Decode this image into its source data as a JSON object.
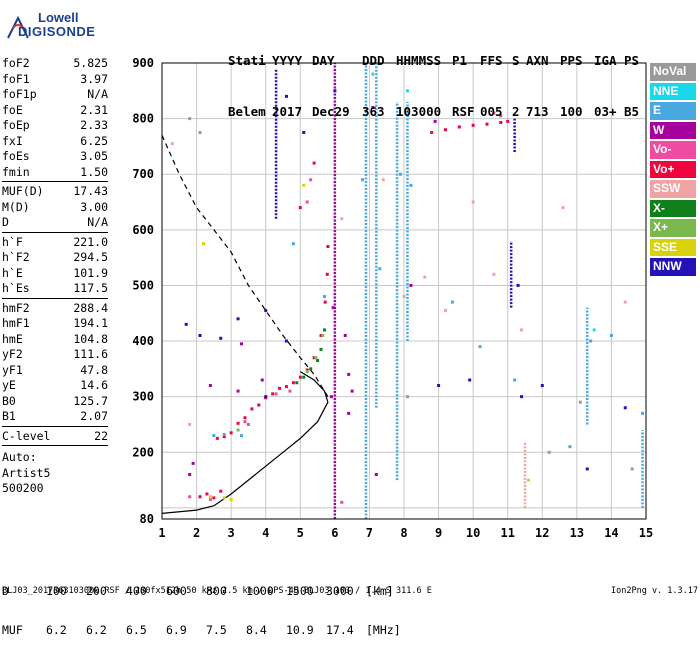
{
  "logo": {
    "line1": "Lowell",
    "line2": "DIGISONDE"
  },
  "header": {
    "labels": [
      "Stati",
      "YYYY",
      "DAY",
      "DDD",
      "HHMMSS",
      "P1",
      "FFS",
      "S",
      "AXN",
      "PPS",
      "IGA",
      "PS"
    ],
    "values": [
      "Belem",
      "2017",
      "Dec29",
      "363",
      "103000",
      "RSF",
      "005",
      "2",
      "713",
      "100",
      "03+",
      "B5"
    ]
  },
  "params": {
    "group1": [
      {
        "name": "foF2",
        "value": "5.825"
      },
      {
        "name": "foF1",
        "value": "3.97"
      },
      {
        "name": "foF1p",
        "value": "N/A"
      },
      {
        "name": "foE",
        "value": "2.31"
      },
      {
        "name": "foEp",
        "value": "2.33"
      },
      {
        "name": "fxI",
        "value": "6.25"
      },
      {
        "name": "foEs",
        "value": "3.05"
      },
      {
        "name": "fmin",
        "value": "1.50"
      }
    ],
    "group2": [
      {
        "name": "MUF(D)",
        "value": "17.43"
      },
      {
        "name": "M(D)",
        "value": "3.00"
      },
      {
        "name": "D",
        "value": "N/A"
      }
    ],
    "group3": [
      {
        "name": "h`F",
        "value": "221.0"
      },
      {
        "name": "h`F2",
        "value": "294.5"
      },
      {
        "name": "h`E",
        "value": "101.9"
      },
      {
        "name": "h`Es",
        "value": "117.5"
      }
    ],
    "group4": [
      {
        "name": "hmF2",
        "value": "288.4"
      },
      {
        "name": "hmF1",
        "value": "194.1"
      },
      {
        "name": "hmE",
        "value": "104.8"
      },
      {
        "name": "yF2",
        "value": "111.6"
      },
      {
        "name": "yF1",
        "value": "47.8"
      },
      {
        "name": "yE",
        "value": "14.6"
      },
      {
        "name": "B0",
        "value": "125.7"
      },
      {
        "name": "B1",
        "value": "2.07"
      }
    ],
    "group5": [
      {
        "name": "C-level",
        "value": "22"
      }
    ],
    "auto": [
      "Auto:",
      "Artist5",
      "500200"
    ]
  },
  "legend": [
    {
      "label": "NoVal",
      "color": "#9a9a9a"
    },
    {
      "label": "NNE",
      "color": "#19d9e6"
    },
    {
      "label": "E",
      "color": "#49a8e0"
    },
    {
      "label": "W",
      "color": "#a6009e"
    },
    {
      "label": "Vo-",
      "color": "#ef4ba3"
    },
    {
      "label": "Vo+",
      "color": "#f0043c"
    },
    {
      "label": "SSW",
      "color": "#f0a3a3"
    },
    {
      "label": "X-",
      "color": "#12801a"
    },
    {
      "label": "X+",
      "color": "#79b84c"
    },
    {
      "label": "SSE",
      "color": "#d8d20e"
    },
    {
      "label": "NNW",
      "color": "#2312b8"
    }
  ],
  "muf_table": {
    "d_label": "D",
    "d_values": [
      "100",
      "200",
      "400",
      "600",
      "800",
      "1000",
      "1500",
      "3000"
    ],
    "d_unit": "[km]",
    "muf_label": "MUF",
    "muf_values": [
      "6.2",
      "6.2",
      "6.5",
      "6.9",
      "7.5",
      "8.4",
      "10.9",
      "17.4"
    ],
    "muf_unit": "[MHz]"
  },
  "footer": {
    "left": "BLJ03_2017363103000.RSF / 280fx512h 50 kHz 2.5 km / DPS-4D BLJ03 103 / 1.4 S 311.6 E",
    "right": "Ion2Png v. 1.3.17"
  },
  "chart_data": {
    "type": "scatter",
    "x_ticks": [
      1,
      2,
      3,
      4,
      5,
      6,
      7,
      8,
      9,
      10,
      11,
      12,
      13,
      14,
      15
    ],
    "y_ticks": [
      80,
      100,
      200,
      300,
      400,
      500,
      600,
      700,
      800,
      900
    ],
    "xlim": [
      1,
      15
    ],
    "ylim": [
      80,
      900
    ],
    "grid": true,
    "legend_position": "right",
    "series": [
      {
        "color": "#f0043c",
        "points": [
          [
            2.6,
            225
          ],
          [
            2.8,
            228
          ],
          [
            3.0,
            235
          ],
          [
            3.2,
            252
          ],
          [
            3.4,
            262
          ],
          [
            3.6,
            278
          ],
          [
            3.8,
            285
          ],
          [
            4.0,
            298
          ],
          [
            4.2,
            305
          ],
          [
            4.4,
            315
          ],
          [
            4.6,
            318
          ],
          [
            4.8,
            325
          ],
          [
            5.0,
            335
          ],
          [
            5.2,
            348
          ],
          [
            5.4,
            370
          ],
          [
            5.6,
            410
          ],
          [
            5.72,
            470
          ],
          [
            5.78,
            520
          ],
          [
            5.8,
            570
          ],
          [
            2.1,
            120
          ],
          [
            2.3,
            125
          ],
          [
            2.5,
            118
          ],
          [
            2.7,
            130
          ],
          [
            8.8,
            775
          ],
          [
            9.2,
            780
          ],
          [
            9.6,
            785
          ],
          [
            10.0,
            788
          ],
          [
            10.4,
            790
          ],
          [
            10.8,
            793
          ],
          [
            11.0,
            795
          ],
          [
            5.0,
            640
          ],
          [
            5.4,
            720
          ]
        ]
      },
      {
        "color": "#12801a",
        "points": [
          [
            4.9,
            325
          ],
          [
            5.1,
            335
          ],
          [
            5.3,
            350
          ],
          [
            5.5,
            365
          ],
          [
            5.6,
            385
          ],
          [
            5.7,
            420
          ]
        ]
      },
      {
        "color": "#79b84c",
        "points": [
          [
            5.2,
            345
          ],
          [
            5.45,
            370
          ],
          [
            5.65,
            410
          ],
          [
            3.2,
            240
          ]
        ]
      },
      {
        "color": "#ef4ba3",
        "points": [
          [
            3.4,
            255
          ],
          [
            3.5,
            250
          ],
          [
            4.3,
            305
          ],
          [
            4.7,
            310
          ],
          [
            2.4,
            115
          ],
          [
            1.8,
            120
          ],
          [
            5.2,
            650
          ],
          [
            5.3,
            690
          ],
          [
            6.2,
            110
          ],
          [
            10.6,
            810
          ],
          [
            10.8,
            805
          ]
        ]
      },
      {
        "color": "#a6009e",
        "points": [
          [
            1.8,
            160
          ],
          [
            1.9,
            180
          ],
          [
            2.4,
            320
          ],
          [
            3.2,
            310
          ],
          [
            3.3,
            395
          ],
          [
            3.9,
            330
          ],
          [
            5.9,
            300
          ],
          [
            5.95,
            460
          ],
          [
            6.3,
            410
          ],
          [
            6.4,
            270
          ],
          [
            6.4,
            340
          ],
          [
            6.5,
            310
          ],
          [
            7.2,
            160
          ],
          [
            7.1,
            820
          ],
          [
            8.2,
            500
          ],
          [
            8.9,
            795
          ]
        ]
      },
      {
        "color": "#2312b8",
        "points": [
          [
            1.7,
            430
          ],
          [
            2.1,
            410
          ],
          [
            2.7,
            405
          ],
          [
            3.2,
            440
          ],
          [
            4.0,
            300
          ],
          [
            4.0,
            455
          ],
          [
            4.6,
            400
          ],
          [
            4.6,
            840
          ],
          [
            5.1,
            775
          ],
          [
            6.0,
            850
          ],
          [
            9.0,
            320
          ],
          [
            9.9,
            330
          ],
          [
            11.3,
            500
          ],
          [
            11.4,
            300
          ],
          [
            12.0,
            320
          ],
          [
            13.3,
            170
          ],
          [
            14.4,
            280
          ]
        ]
      },
      {
        "color": "#49a8e0",
        "points": [
          [
            2.5,
            230
          ],
          [
            2.8,
            232
          ],
          [
            3.3,
            230
          ],
          [
            4.8,
            575
          ],
          [
            5.7,
            480
          ],
          [
            6.8,
            690
          ],
          [
            7.3,
            530
          ],
          [
            7.9,
            700
          ],
          [
            8.2,
            680
          ],
          [
            9.4,
            470
          ],
          [
            10.2,
            390
          ],
          [
            11.2,
            330
          ],
          [
            12.8,
            210
          ],
          [
            13.4,
            400
          ],
          [
            14.0,
            410
          ],
          [
            14.9,
            270
          ]
        ]
      },
      {
        "color": "#19d9e6",
        "points": [
          [
            7.1,
            880
          ],
          [
            8.1,
            850
          ],
          [
            13.5,
            420
          ]
        ]
      },
      {
        "color": "#f0a3a3",
        "points": [
          [
            1.3,
            755
          ],
          [
            1.8,
            250
          ],
          [
            6.2,
            620
          ],
          [
            7.4,
            690
          ],
          [
            8.6,
            515
          ],
          [
            9.2,
            455
          ],
          [
            10.0,
            650
          ],
          [
            10.6,
            520
          ],
          [
            11.4,
            420
          ],
          [
            12.6,
            640
          ],
          [
            14.4,
            470
          ],
          [
            8.0,
            480
          ]
        ]
      },
      {
        "color": "#d8d20e",
        "points": [
          [
            3.0,
            115
          ],
          [
            2.4,
            120
          ],
          [
            2.8,
            118
          ],
          [
            2.2,
            575
          ],
          [
            5.1,
            680
          ],
          [
            11.6,
            150
          ]
        ]
      },
      {
        "color": "#9a9a9a",
        "points": [
          [
            1.8,
            800
          ],
          [
            2.1,
            775
          ],
          [
            8.1,
            300
          ],
          [
            12.2,
            200
          ],
          [
            13.1,
            290
          ],
          [
            14.6,
            170
          ]
        ]
      }
    ],
    "columns": [
      {
        "x": 6.0,
        "y0": 80,
        "y1": 900,
        "color": "#a6009e"
      },
      {
        "x": 6.9,
        "y0": 80,
        "y1": 900,
        "color": "#49a8e0"
      },
      {
        "x": 7.2,
        "y0": 280,
        "y1": 900,
        "color": "#49a8e0"
      },
      {
        "x": 7.8,
        "y0": 150,
        "y1": 830,
        "color": "#49a8e0"
      },
      {
        "x": 8.1,
        "y0": 400,
        "y1": 830,
        "color": "#49a8e0"
      },
      {
        "x": 4.3,
        "y0": 620,
        "y1": 890,
        "color": "#2312b8"
      },
      {
        "x": 11.2,
        "y0": 740,
        "y1": 800,
        "color": "#2312b8"
      },
      {
        "x": 11.1,
        "y0": 460,
        "y1": 580,
        "color": "#2312b8"
      },
      {
        "x": 11.5,
        "y0": 100,
        "y1": 220,
        "color": "#f0a3a3"
      },
      {
        "x": 13.3,
        "y0": 250,
        "y1": 460,
        "color": "#49a8e0"
      },
      {
        "x": 14.9,
        "y0": 100,
        "y1": 240,
        "color": "#49a8e0"
      }
    ],
    "profile_solid": [
      [
        1.0,
        90
      ],
      [
        2.0,
        96
      ],
      [
        2.5,
        104
      ],
      [
        3.0,
        125
      ],
      [
        3.5,
        150
      ],
      [
        4.0,
        175
      ],
      [
        4.5,
        200
      ],
      [
        5.0,
        225
      ],
      [
        5.5,
        255
      ],
      [
        5.8,
        290
      ],
      [
        5.7,
        310
      ],
      [
        5.4,
        330
      ],
      [
        5.0,
        345
      ]
    ],
    "profile_dashed": [
      [
        1.0,
        770
      ],
      [
        1.5,
        700
      ],
      [
        2.0,
        640
      ],
      [
        2.5,
        600
      ],
      [
        3.0,
        560
      ],
      [
        3.5,
        500
      ],
      [
        4.0,
        455
      ],
      [
        4.5,
        410
      ],
      [
        5.0,
        370
      ],
      [
        5.4,
        340
      ],
      [
        5.8,
        300
      ]
    ]
  }
}
